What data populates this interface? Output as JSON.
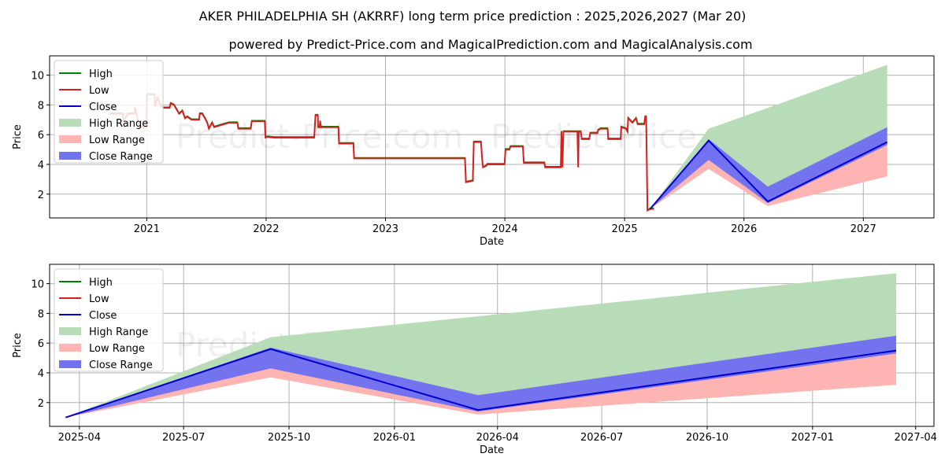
{
  "header": {
    "title": "AKER PHILADELPHIA SH (AKRRF) long term price prediction : 2025,2026,2027 (Mar 20)",
    "subtitle": "powered by Predict-Price.com and MagicalPrediction.com and MagicalAnalysis.com"
  },
  "watermark": "Predict-Price.com",
  "colors": {
    "high": "#008000",
    "low": "#d62020",
    "close": "#0000cc",
    "high_range": "#b7dcb7",
    "low_range": "#ffb4b4",
    "close_range": "#7373f0",
    "grid": "#b0b0b0"
  },
  "chart_data": [
    {
      "type": "line",
      "xlabel": "Date",
      "ylabel": "Price",
      "x_ticks": [
        "2021",
        "2022",
        "2023",
        "2024",
        "2025",
        "2026",
        "2027"
      ],
      "y_ticks": [
        2,
        4,
        6,
        8,
        10
      ],
      "ylim": [
        0.4,
        11.3
      ],
      "xlim": [
        "2020-03-10",
        "2027-08-05"
      ],
      "grid": true,
      "legend_position": "top-left",
      "legend": [
        "High",
        "Low",
        "Close",
        "High Range",
        "Low Range",
        "Close Range"
      ],
      "history_low": [
        [
          "2020-09-10",
          7.4
        ],
        [
          "2020-10-20",
          7.4
        ],
        [
          "2020-10-21",
          6.9
        ],
        [
          "2020-11-05",
          7.4
        ],
        [
          "2020-11-25",
          7.4
        ],
        [
          "2020-11-26",
          7.8
        ],
        [
          "2020-12-10",
          6.5
        ],
        [
          "2020-12-31",
          6.5
        ],
        [
          "2021-01-02",
          8.7
        ],
        [
          "2021-01-25",
          8.7
        ],
        [
          "2021-01-26",
          7.9
        ],
        [
          "2021-02-03",
          8.5
        ],
        [
          "2021-02-12",
          8.0
        ],
        [
          "2021-02-20",
          7.8
        ],
        [
          "2021-03-12",
          7.8
        ],
        [
          "2021-03-15",
          8.1
        ],
        [
          "2021-03-25",
          8.0
        ],
        [
          "2021-04-05",
          7.6
        ],
        [
          "2021-04-10",
          7.4
        ],
        [
          "2021-04-20",
          7.6
        ],
        [
          "2021-04-28",
          7.1
        ],
        [
          "2021-05-05",
          7.2
        ],
        [
          "2021-05-18",
          7.0
        ],
        [
          "2021-06-10",
          7.0
        ],
        [
          "2021-06-12",
          7.4
        ],
        [
          "2021-06-20",
          7.4
        ],
        [
          "2021-06-28",
          7.1
        ],
        [
          "2021-07-05",
          6.8
        ],
        [
          "2021-07-10",
          6.4
        ],
        [
          "2021-07-20",
          6.8
        ],
        [
          "2021-07-26",
          6.5
        ],
        [
          "2021-08-10",
          6.6
        ],
        [
          "2021-08-25",
          6.7
        ],
        [
          "2021-09-10",
          6.8
        ],
        [
          "2021-10-05",
          6.8
        ],
        [
          "2021-10-08",
          6.4
        ],
        [
          "2021-11-15",
          6.4
        ],
        [
          "2021-11-18",
          6.9
        ],
        [
          "2021-12-28",
          6.9
        ],
        [
          "2021-12-30",
          5.8
        ],
        [
          "2022-01-05",
          5.85
        ],
        [
          "2022-01-25",
          5.8
        ],
        [
          "2022-05-28",
          5.8
        ],
        [
          "2022-06-01",
          7.3
        ],
        [
          "2022-06-08",
          7.3
        ],
        [
          "2022-06-09",
          6.5
        ],
        [
          "2022-06-14",
          6.5
        ],
        [
          "2022-06-15",
          6.9
        ],
        [
          "2022-06-18",
          6.5
        ],
        [
          "2022-07-15",
          6.5
        ],
        [
          "2022-08-10",
          6.5
        ],
        [
          "2022-08-12",
          5.4
        ],
        [
          "2022-09-25",
          5.4
        ],
        [
          "2022-09-27",
          4.4
        ],
        [
          "2023-09-01",
          4.4
        ],
        [
          "2023-09-04",
          2.8
        ],
        [
          "2023-09-25",
          2.9
        ],
        [
          "2023-09-28",
          5.5
        ],
        [
          "2023-10-20",
          5.5
        ],
        [
          "2023-10-23",
          4.5
        ],
        [
          "2023-10-26",
          3.8
        ],
        [
          "2023-11-05",
          3.9
        ],
        [
          "2023-11-08",
          4.0
        ],
        [
          "2023-12-31",
          4.0
        ],
        [
          "2024-01-03",
          5.0
        ],
        [
          "2024-01-15",
          5.0
        ],
        [
          "2024-01-18",
          5.2
        ],
        [
          "2024-02-25",
          5.2
        ],
        [
          "2024-02-28",
          4.1
        ],
        [
          "2024-05-01",
          4.1
        ],
        [
          "2024-05-03",
          3.8
        ],
        [
          "2024-06-20",
          3.8
        ],
        [
          "2024-06-22",
          6.2
        ],
        [
          "2024-06-25",
          3.8
        ],
        [
          "2024-06-28",
          6.2
        ],
        [
          "2024-08-10",
          6.2
        ],
        [
          "2024-08-12",
          3.8
        ],
        [
          "2024-08-14",
          6.2
        ],
        [
          "2024-08-20",
          6.2
        ],
        [
          "2024-08-23",
          5.7
        ],
        [
          "2024-09-15",
          5.7
        ],
        [
          "2024-09-18",
          6.1
        ],
        [
          "2024-10-10",
          6.1
        ],
        [
          "2024-10-12",
          6.3
        ],
        [
          "2024-10-20",
          6.4
        ],
        [
          "2024-11-10",
          6.4
        ],
        [
          "2024-11-12",
          5.7
        ],
        [
          "2024-12-20",
          5.7
        ],
        [
          "2024-12-22",
          6.5
        ],
        [
          "2025-01-05",
          6.4
        ],
        [
          "2025-01-10",
          6.2
        ],
        [
          "2025-01-12",
          7.1
        ],
        [
          "2025-01-25",
          6.8
        ],
        [
          "2025-02-05",
          7.1
        ],
        [
          "2025-02-10",
          6.7
        ],
        [
          "2025-03-02",
          6.7
        ],
        [
          "2025-03-05",
          7.2
        ],
        [
          "2025-03-08",
          7.2
        ],
        [
          "2025-03-12",
          0.9
        ],
        [
          "2025-03-20",
          1.0
        ],
        [
          "2025-04-01",
          1.0
        ]
      ],
      "forecast": {
        "x": [
          "2025-03-20",
          "2025-09-15",
          "2026-03-15",
          "2027-03-15"
        ],
        "close": [
          1.0,
          5.6,
          1.5,
          5.5
        ],
        "high_range": [
          [
            1.0,
            1.0
          ],
          [
            3.7,
            6.4
          ],
          [
            1.2,
            7.8
          ],
          [
            3.2,
            10.7
          ]
        ],
        "low_range": [
          [
            1.0,
            1.0
          ],
          [
            3.7,
            4.4
          ],
          [
            1.2,
            1.4
          ],
          [
            3.2,
            5.4
          ]
        ],
        "close_range": [
          [
            1.0,
            1.0
          ],
          [
            4.3,
            5.7
          ],
          [
            1.4,
            2.5
          ],
          [
            5.3,
            6.5
          ]
        ]
      }
    },
    {
      "type": "line",
      "xlabel": "Date",
      "ylabel": "Price",
      "x_ticks": [
        "2025-04",
        "2025-07",
        "2025-10",
        "2026-01",
        "2026-04",
        "2026-07",
        "2026-10",
        "2027-01",
        "2027-04"
      ],
      "y_ticks": [
        2,
        4,
        6,
        8,
        10
      ],
      "ylim": [
        0.4,
        11.3
      ],
      "xlim": [
        "2025-03-06",
        "2027-04-17"
      ],
      "grid": true,
      "legend_position": "top-left",
      "legend": [
        "High",
        "Low",
        "Close",
        "High Range",
        "Low Range",
        "Close Range"
      ]
    }
  ]
}
